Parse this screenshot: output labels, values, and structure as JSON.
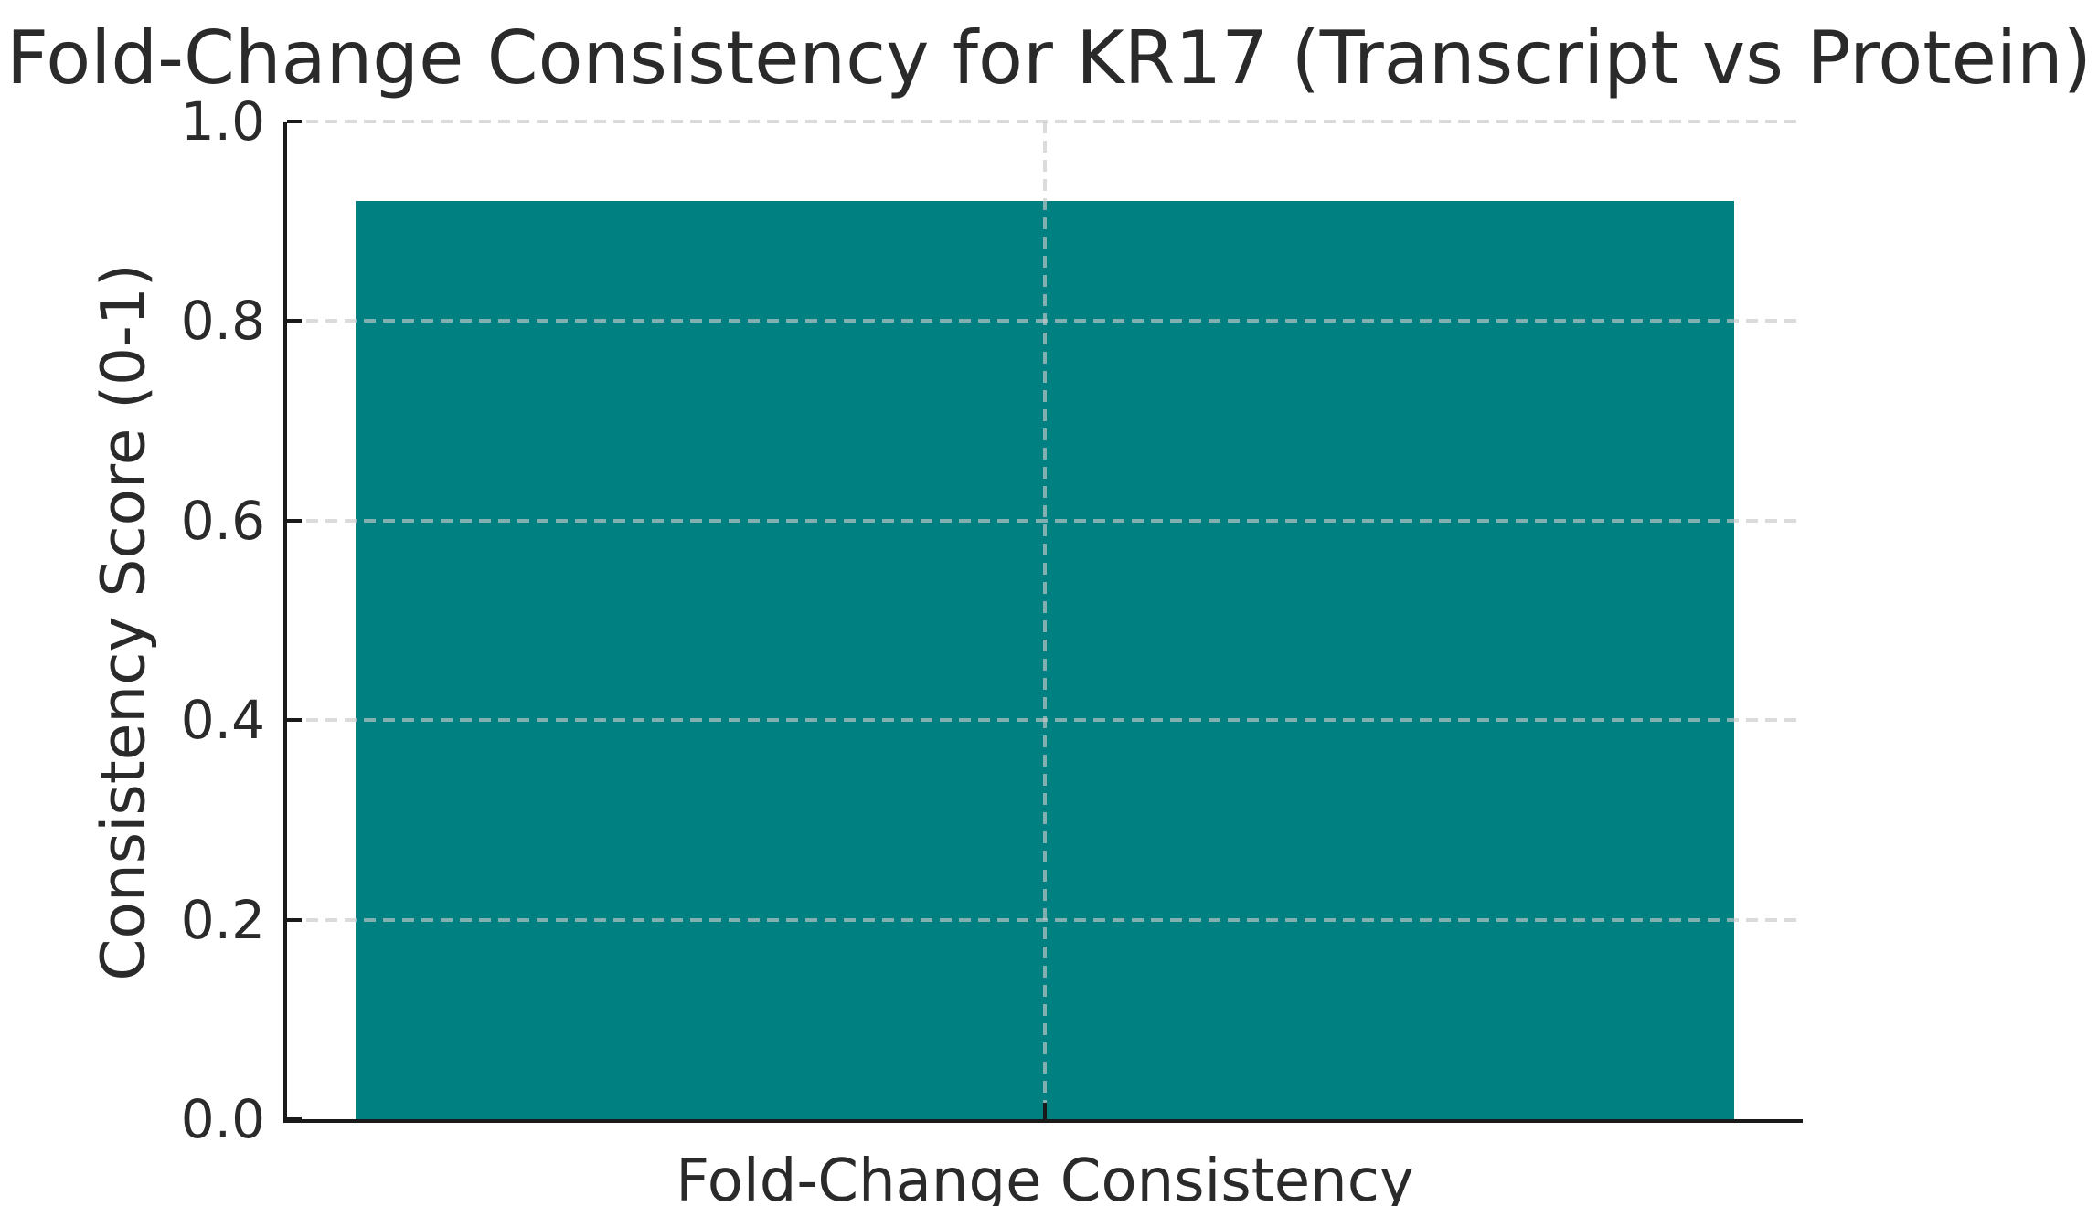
{
  "chart_data": {
    "type": "bar",
    "title": "Fold-Change Consistency for KR17 (Transcript vs Protein)",
    "categories": [
      "Fold-Change Consistency"
    ],
    "values": [
      0.92
    ],
    "xlabel": "",
    "ylabel": "Consistency Score (0-1)",
    "ylim": [
      0,
      1
    ],
    "yticks": [
      0.0,
      0.2,
      0.4,
      0.6,
      0.8,
      1.0
    ],
    "ytick_labels": [
      "0.0",
      "0.2",
      "0.4",
      "0.6",
      "0.8",
      "1.0"
    ],
    "bar_color": "#008080",
    "grid": "dashed",
    "gridline_color": "#cccccc",
    "axis_color": "#1a1a1a",
    "text_color": "#2a2a2a",
    "background": "#ffffff",
    "legend_position": "none"
  }
}
